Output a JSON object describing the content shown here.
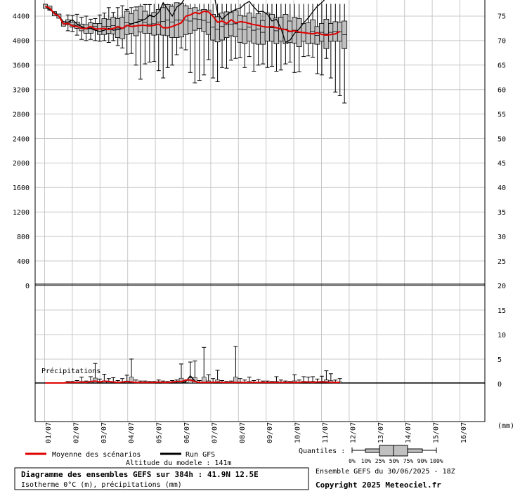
{
  "chart_data": {
    "type": "boxplot",
    "title": "Diagramme des ensembles GEFS sur 384h : 41.9N 12.5E",
    "subtitle": "Isotherme 0°C (m), précipitations (mm)",
    "altitude_label": "Altitude du modele : 141m",
    "run_label": "Ensemble GEFS du 30/06/2025 - 18Z",
    "copyright": "Copyright 2025 Meteociel.fr",
    "precip_label": "Précipitations",
    "unit_label": "(mm)",
    "legend": {
      "mean": "Moyenne des scénarios",
      "run": "Run GFS",
      "quantiles_title": "Quantiles :",
      "quantile_labels": [
        "0%",
        "10%",
        "25%",
        "50%",
        "75%",
        "90%",
        "100%"
      ]
    },
    "colors": {
      "mean": "#e00000",
      "run": "#000000",
      "box": "#c0c0c0",
      "grid": "#c8c8c8"
    },
    "x_labels": [
      "01/07",
      "02/07",
      "03/07",
      "04/07",
      "05/07",
      "06/07",
      "07/07",
      "08/07",
      "09/07",
      "10/07",
      "11/07",
      "12/07",
      "13/07",
      "14/07",
      "15/07",
      "16/07"
    ],
    "left_axis_top": {
      "ticks": [
        "4400",
        "4000",
        "3600",
        "3200",
        "2800",
        "2400",
        "2000",
        "1600",
        "1200",
        "800",
        "400",
        "0"
      ]
    },
    "right_axis_top": {
      "ticks": [
        "75",
        "70",
        "65",
        "60",
        "55",
        "50",
        "45",
        "40",
        "35",
        "30",
        "25",
        "20"
      ]
    },
    "right_axis_bottom": {
      "ticks": [
        "15",
        "10",
        "5",
        "0"
      ]
    },
    "upper_ylim": [
      0,
      4600
    ],
    "lower_ylim": [
      -8,
      20
    ],
    "freezing_level": {
      "mean": [
        4560,
        4530,
        4440,
        4400,
        4270,
        4280,
        4240,
        4230,
        4200,
        4200,
        4230,
        4190,
        4190,
        4200,
        4180,
        4200,
        4230,
        4200,
        4250,
        4230,
        4240,
        4250,
        4250,
        4240,
        4250,
        4270,
        4210,
        4210,
        4230,
        4260,
        4290,
        4400,
        4420,
        4460,
        4440,
        4480,
        4470,
        4400,
        4300,
        4320,
        4280,
        4340,
        4290,
        4310,
        4300,
        4280,
        4260,
        4250,
        4230,
        4220,
        4230,
        4210,
        4190,
        4180,
        4150,
        4160,
        4140,
        4130,
        4120,
        4110,
        4130,
        4100,
        4090,
        4100,
        4110,
        4150
      ],
      "run": [
        4560,
        4500,
        4460,
        4400,
        4310,
        4300,
        4340,
        4270,
        4230,
        4200,
        4200,
        4170,
        4150,
        4170,
        4200,
        4170,
        4180,
        4200,
        4240,
        4270,
        4300,
        4320,
        4350,
        4410,
        4390,
        4460,
        4620,
        4510,
        4400,
        4550,
        4600,
        4720,
        4900,
        5000,
        4960,
        4930,
        5000,
        4850,
        4450,
        4350,
        4420,
        4470,
        4510,
        4530,
        4600,
        4640,
        4550,
        4470,
        4480,
        4430,
        4320,
        4350,
        4200,
        3970,
        4010,
        4120,
        4190,
        4290,
        4370,
        4470,
        4560,
        4620,
        4700,
        4800,
        4850,
        4900
      ],
      "box_start": 5,
      "q25": [
        4260,
        4220,
        4200,
        4160,
        4120,
        4120,
        4180,
        4100,
        4100,
        4120,
        4110,
        4050,
        4030,
        4100,
        4120,
        4080,
        4140,
        4120,
        4120,
        4090,
        4100,
        4090,
        4080,
        4050,
        4050,
        4060,
        4100,
        4120,
        4170,
        4200,
        4150,
        4100,
        4010,
        3980,
        4010,
        4050,
        4080,
        4060,
        3970,
        3950,
        3990,
        3960,
        3940,
        3940,
        3990,
        3990,
        3950,
        3990,
        3950,
        3970,
        3960,
        3900,
        3990,
        3950,
        3960,
        3940,
        3990,
        3870,
        3990,
        3990,
        3990,
        3870
      ],
      "q75": [
        4340,
        4300,
        4300,
        4270,
        4260,
        4290,
        4280,
        4280,
        4360,
        4350,
        4380,
        4360,
        4380,
        4480,
        4440,
        4500,
        4560,
        4480,
        4420,
        4460,
        4510,
        4540,
        4590,
        4560,
        4620,
        4610,
        4570,
        4520,
        4540,
        4500,
        4510,
        4500,
        4430,
        4390,
        4450,
        4470,
        4460,
        4490,
        4410,
        4400,
        4450,
        4380,
        4440,
        4330,
        4450,
        4430,
        4370,
        4380,
        4430,
        4320,
        4380,
        4360,
        4280,
        4290,
        4340,
        4230,
        4280,
        4350,
        4280,
        4310,
        4300,
        4320
      ],
      "minv": [
        4160,
        4150,
        4090,
        4020,
        4000,
        4020,
        4000,
        3990,
        4000,
        3970,
        4000,
        3920,
        3880,
        3780,
        3790,
        3600,
        3370,
        3620,
        3650,
        3660,
        3510,
        3390,
        3560,
        3600,
        3770,
        3880,
        3850,
        3480,
        3310,
        3350,
        3440,
        3690,
        3390,
        3330,
        3560,
        3550,
        3680,
        3710,
        3720,
        3560,
        3740,
        3500,
        3600,
        3620,
        3560,
        3580,
        3500,
        3520,
        3620,
        3650,
        3480,
        3490,
        3740,
        3750,
        3730,
        3460,
        3440,
        3710,
        3390,
        3160,
        3100,
        2980
      ],
      "maxv": [
        4420,
        4410,
        4430,
        4380,
        4400,
        4350,
        4360,
        4420,
        4450,
        4540,
        4460,
        4540,
        4570,
        4510,
        4540,
        4550,
        4600,
        4590,
        4590,
        4600,
        4600,
        4600,
        4600,
        4600,
        4600,
        4600,
        4600,
        4600,
        4600,
        4600,
        4600,
        4600,
        4600,
        4600,
        4600,
        4600,
        4600,
        4600,
        4600,
        4600,
        4600,
        4600,
        4600,
        4600,
        4600,
        4600,
        4600,
        4600,
        4600,
        4600,
        4600,
        4600,
        4600,
        4600,
        4600,
        4600,
        4600,
        4600,
        4600,
        4600,
        4600,
        4600
      ]
    },
    "precipitation": {
      "mean": [
        0,
        0,
        0,
        0,
        0,
        0.1,
        0.1,
        0.1,
        0.2,
        0.1,
        0.3,
        0.4,
        0.2,
        0.4,
        0.3,
        0.2,
        0.1,
        0.2,
        0.3,
        0.2,
        0.1,
        0.1,
        0.1,
        0.1,
        0.1,
        0.2,
        0.1,
        0.1,
        0.2,
        0.3,
        0.3,
        0.6,
        0.6,
        0.3,
        0.1,
        0.1,
        0.1,
        0.1,
        0.2,
        0.1,
        0.1,
        0.1,
        0.1,
        0.1,
        0.1,
        0.1,
        0.1,
        0.1,
        0.1,
        0.1,
        0.1,
        0.1,
        0.1,
        0.1,
        0.1,
        0.1,
        0.1,
        0.2,
        0.2,
        0.1,
        0.2,
        0.2,
        0.2,
        0.1,
        0.1,
        0.1
      ],
      "run": [
        0,
        0,
        0,
        0,
        0,
        0,
        0,
        0,
        0.3,
        0,
        0,
        0,
        0,
        0,
        0,
        0,
        0,
        0,
        0,
        0,
        0,
        0,
        0,
        0,
        0,
        0,
        0,
        0,
        0,
        0,
        0,
        0.3,
        1.5,
        0.4,
        0,
        0,
        0,
        0,
        0,
        0,
        0,
        0,
        0,
        0,
        0,
        0,
        0,
        0,
        0,
        0,
        0,
        0,
        0,
        0,
        0,
        0,
        0,
        0,
        0,
        0,
        0,
        0,
        0,
        0,
        0,
        0
      ],
      "maxv": [
        0,
        0,
        0,
        0,
        0,
        0.3,
        0.3,
        0.5,
        1.2,
        0.4,
        1.3,
        4.0,
        0.8,
        1.8,
        0.9,
        1.1,
        0.5,
        0.9,
        1.6,
        4.9,
        0.6,
        0.4,
        0.4,
        0.3,
        0.3,
        0.6,
        0.4,
        0.3,
        0.5,
        0.6,
        3.9,
        0.6,
        4.3,
        4.5,
        0.5,
        7.3,
        1.7,
        0.9,
        2.6,
        0.5,
        0.3,
        0.4,
        7.5,
        0.9,
        0.6,
        1.2,
        0.5,
        0.7,
        0.4,
        0.4,
        0.3,
        1.3,
        0.6,
        0.4,
        0.3,
        1.7,
        0.6,
        1.3,
        1.2,
        1.3,
        0.8,
        1.4,
        2.5,
        1.9,
        0.6,
        0.9
      ]
    }
  }
}
